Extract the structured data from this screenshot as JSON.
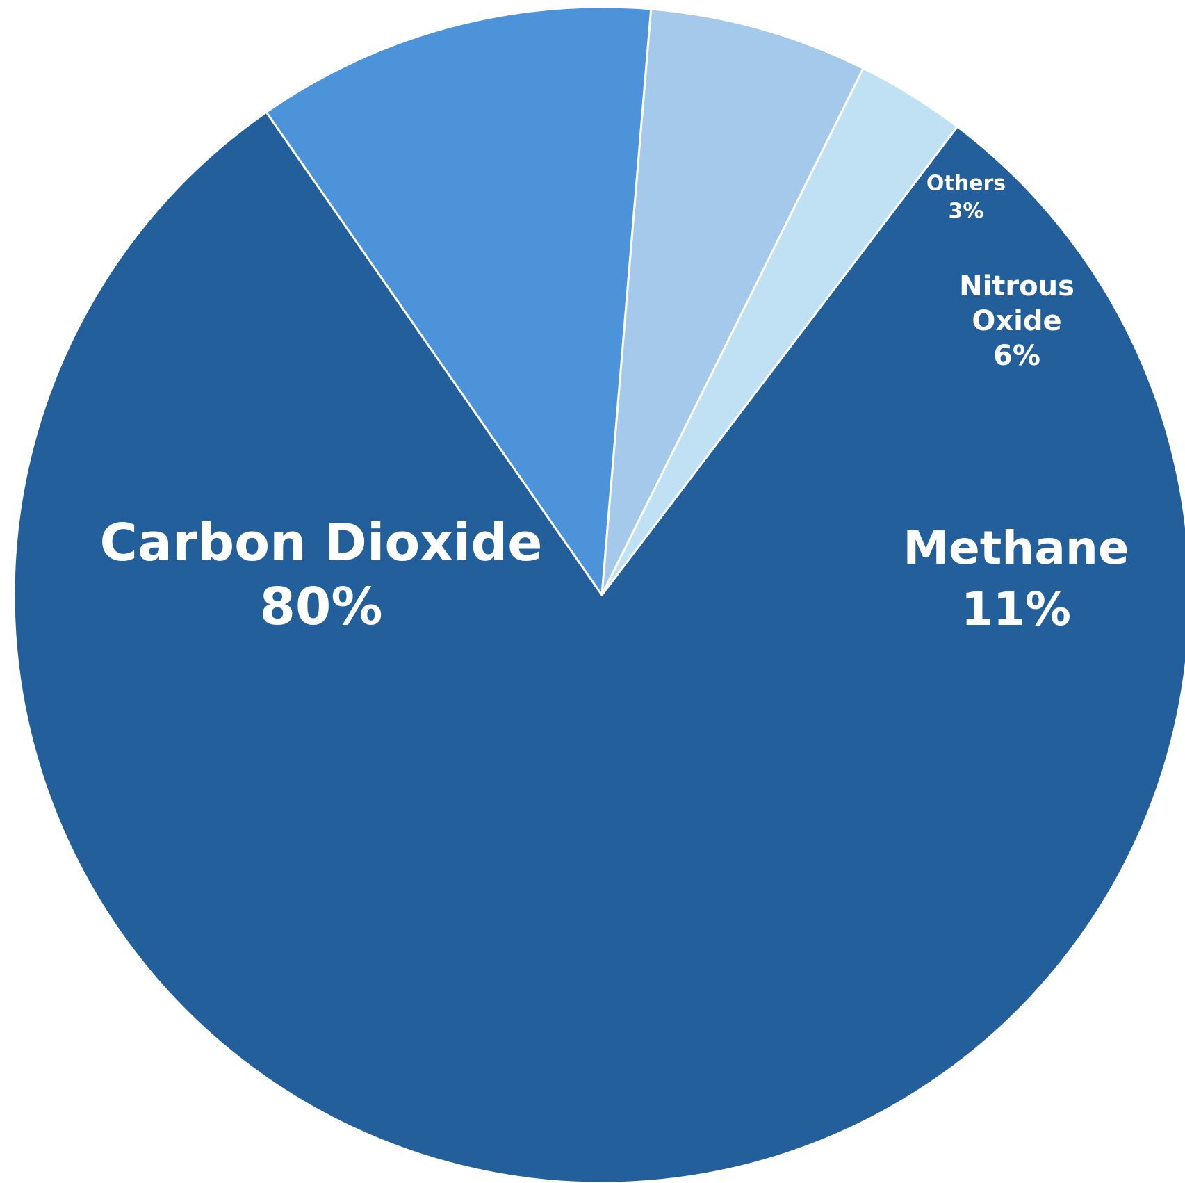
{
  "chart_data": {
    "type": "pie",
    "title": "",
    "start_angle_deg": 37.2,
    "direction": "clockwise",
    "slices": [
      {
        "label_lines": [
          "Carbon Dioxide"
        ],
        "value": 80,
        "value_label": "80%",
        "color": "#225f9b",
        "label_color": "#ffffff"
      },
      {
        "label_lines": [
          "Methane"
        ],
        "value": 11,
        "value_label": "11%",
        "color": "#4d93d9",
        "label_color": "#ffffff"
      },
      {
        "label_lines": [
          "Nitrous",
          "Oxide"
        ],
        "value": 6,
        "value_label": "6%",
        "color": "#a5c9eb",
        "label_color": "#ffffff"
      },
      {
        "label_lines": [
          "Others"
        ],
        "value": 3,
        "value_label": "3%",
        "color": "#c0e1f3",
        "label_color": "#ffffff"
      }
    ]
  }
}
